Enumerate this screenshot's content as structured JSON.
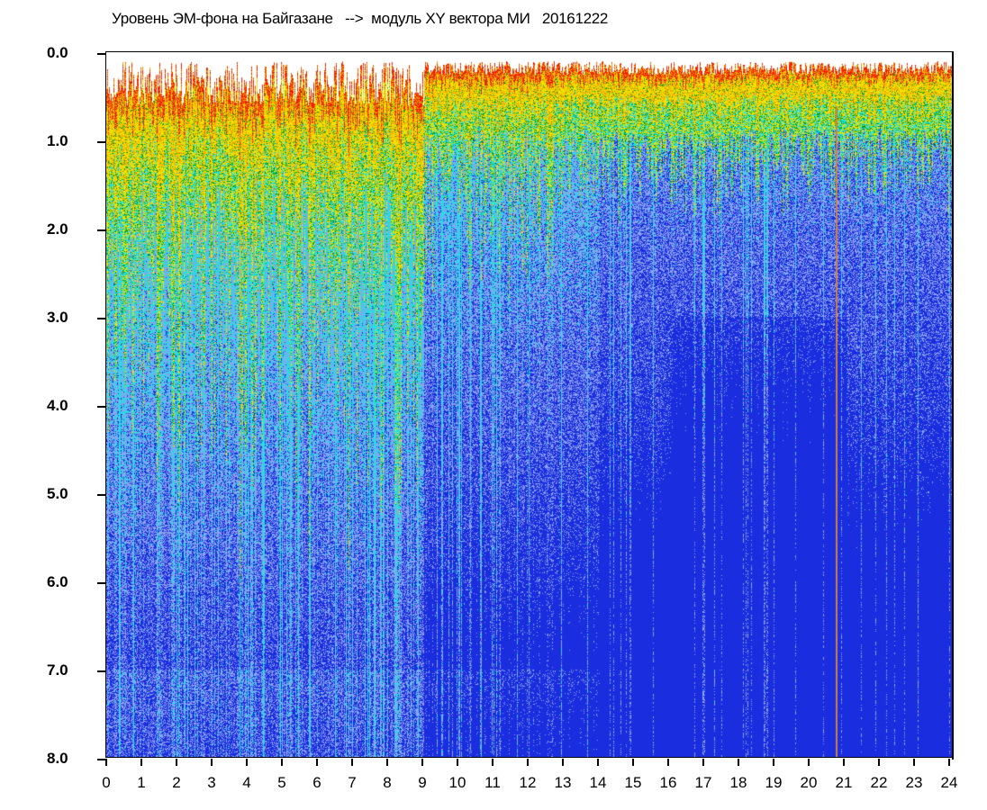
{
  "chart_data": {
    "type": "heatmap",
    "title": "Уровень ЭМ-фона на Байгазане   -->  модуль XY вектора МИ   20161222",
    "xlabel": "",
    "ylabel": "",
    "xlim": [
      0,
      24
    ],
    "ylim": [
      8.0,
      0.0
    ],
    "x_ticks": [
      "0",
      "1",
      "2",
      "3",
      "4",
      "5",
      "6",
      "7",
      "8",
      "9",
      "10",
      "11",
      "12",
      "13",
      "14",
      "15",
      "16",
      "17",
      "18",
      "19",
      "20",
      "21",
      "22",
      "23",
      "24"
    ],
    "y_ticks": [
      "0.0",
      "1.0",
      "2.0",
      "3.0",
      "4.0",
      "5.0",
      "6.0",
      "7.0",
      "8.0"
    ],
    "y_inverted": true,
    "grid": false,
    "legend": "none",
    "colormap": [
      "#ffffff",
      "#f02000",
      "#f0a000",
      "#f0e000",
      "#0a9a0a",
      "#20e0e0",
      "#8ca0f0",
      "#1a2ee0"
    ]
  }
}
